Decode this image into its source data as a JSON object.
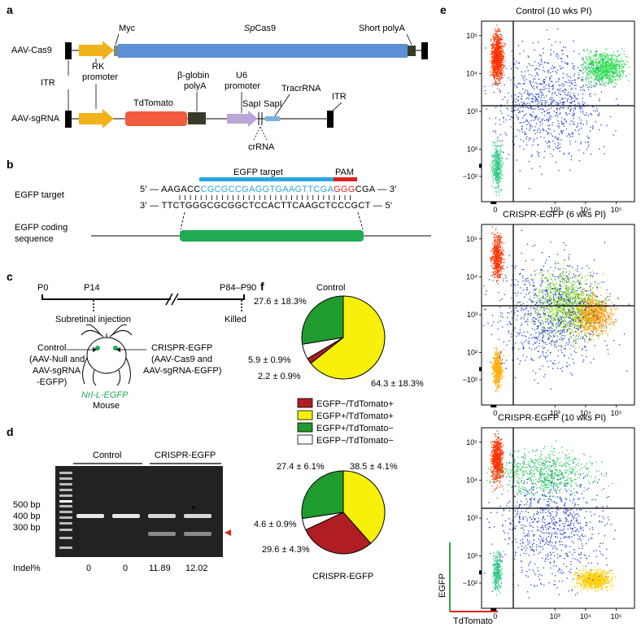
{
  "panel_letters": {
    "a": "a",
    "b": "b",
    "c": "c",
    "d": "d",
    "e": "e",
    "f": "f"
  },
  "panel_a": {
    "row1_label": "AAV-Cas9",
    "row2_label": "AAV-sgRNA",
    "myc": "Myc",
    "spcas9_italic": "Sp",
    "spcas9_rest": "Cas9",
    "short_polya": "Short polyA",
    "itr_left": "ITR",
    "itr_right": "ITR",
    "rk_line1": "RK",
    "rk_line2": "promoter",
    "bglobin_line1": "β-globin",
    "bglobin_line2": "polyA",
    "u6_line1": "U6",
    "u6_line2": "promoter",
    "tdtomato": "TdTomato",
    "sapi1": "SapI",
    "sapi2": "SapI",
    "tracrrna": "TracrRNA",
    "crrna": "crRNA",
    "colors": {
      "cas9": "#5b8fd6",
      "promoter": "#f2b21b",
      "tdtomato": "#f15a3b",
      "polya": "#3a3a2a",
      "u6": "#b9a6d6",
      "crrna": "#7ab4e0",
      "myc": "#7b8b7b"
    }
  },
  "panel_b": {
    "target_label": "EGFP target",
    "egfp_target_bar": "EGFP target",
    "pam": "PAM",
    "top_prefix": "5′ — AAGACC",
    "top_target": "CGCGCCGAGGTGAAGTTCGA",
    "top_pam": "GGG",
    "top_suffix": "CGA — 3′",
    "bottom_seq": "3′ — TTCTGGGCGCGGCTCCACTTCAAGCTCCCGCT — 5′",
    "coding_line1": "EGFP coding",
    "coding_line2": "sequence",
    "colors": {
      "target": "#2aa6df",
      "pam": "#e02020",
      "coding": "#22aa55"
    }
  },
  "panel_c": {
    "p0": "P0",
    "p14": "P14",
    "p84": "P84–P90",
    "subretinal": "Subretinal injection",
    "killed": "Killed",
    "control_l1": "Control",
    "control_l2": "(AAV-Null and",
    "control_l3": "AAV-sgRNA",
    "control_l4": "-EGFP)",
    "crispr_l1": "CRISPR-EGFP",
    "crispr_l2": "(AAV-Cas9 and",
    "crispr_l3": "AAV-sgRNA-EGFP)",
    "nrl": "Nrl-L-EGFP",
    "mouse": "Mouse"
  },
  "panel_d": {
    "control": "Control",
    "crispr": "CRISPR-EGFP",
    "bp500": "500 bp",
    "bp400": "400 bp",
    "bp300": "300 bp",
    "indel_label": "Indel%",
    "indel_values": [
      "0",
      "0",
      "11.89",
      "12.02"
    ]
  },
  "panel_e": {
    "titles": [
      "Control (10 wks PI)",
      "CRISPR-EGFP (6 wks PI)",
      "CRISPR-EGFP (10 wks PI)"
    ],
    "y_ticks": [
      "10⁵",
      "10⁴",
      "10³",
      "10²",
      "−10²"
    ],
    "x_ticks": [
      "0",
      "10³",
      "10⁴",
      "10⁵"
    ],
    "ylabel": "EGFP",
    "xlabel": "TdTomato"
  },
  "chart_data": [
    {
      "type": "pie",
      "title": "Control",
      "labels": [
        "EGFP−/TdTomato+",
        "EGFP+/TdTomato+",
        "EGFP+/TdTomato−",
        "EGFP−/TdTomato−"
      ],
      "values": [
        2.2,
        64.3,
        27.6,
        5.9
      ],
      "value_labels": [
        "2.2 ± 0.9%",
        "64.3 ± 18.3%",
        "27.6 ± 18.3%",
        "5.9 ± 0.9%"
      ],
      "colors": [
        "#b01e23",
        "#f7f00a",
        "#1f9b2f",
        "#ffffff"
      ]
    },
    {
      "type": "pie",
      "title": "CRISPR-EGFP",
      "labels": [
        "EGFP−/TdTomato+",
        "EGFP+/TdTomato+",
        "EGFP+/TdTomato−",
        "EGFP−/TdTomato−"
      ],
      "values": [
        29.6,
        38.5,
        27.4,
        4.6
      ],
      "value_labels": [
        "29.6 ± 4.3%",
        "38.5 ± 4.1%",
        "27.4 ± 6.1%",
        "4.6 ± 0.9%"
      ],
      "colors": [
        "#b01e23",
        "#f7f00a",
        "#1f9b2f",
        "#ffffff"
      ]
    }
  ],
  "legend": {
    "items": [
      "EGFP−/TdTomato+",
      "EGFP+/TdTomato+",
      "EGFP+/TdTomato−",
      "EGFP−/TdTomato−"
    ],
    "colors": [
      "#b01e23",
      "#f7f00a",
      "#1f9b2f",
      "#ffffff"
    ]
  }
}
